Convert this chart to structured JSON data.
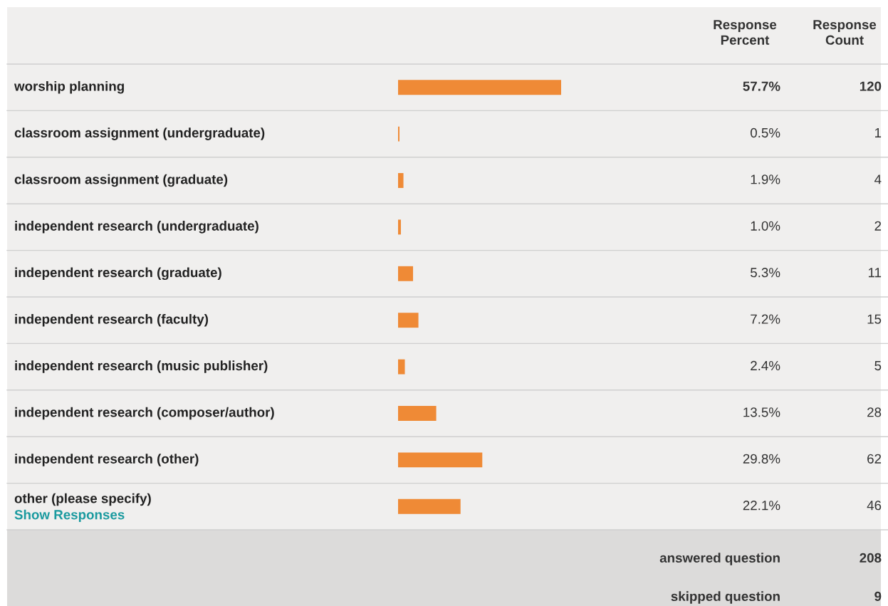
{
  "chart_data": {
    "type": "bar",
    "orientation": "horizontal",
    "categories": [
      "worship planning",
      "classroom assignment (undergraduate)",
      "classroom assignment (graduate)",
      "independent research (undergraduate)",
      "independent research (graduate)",
      "independent research (faculty)",
      "independent research (music publisher)",
      "independent research (composer/author)",
      "independent research (other)",
      "other (please specify)"
    ],
    "values": [
      57.7,
      0.5,
      1.9,
      1.0,
      5.3,
      7.2,
      2.4,
      13.5,
      29.8,
      22.1
    ],
    "value_labels": [
      "57.7%",
      "0.5%",
      "1.9%",
      "1.0%",
      "5.3%",
      "7.2%",
      "2.4%",
      "13.5%",
      "29.8%",
      "22.1%"
    ],
    "color": "#ef8a36",
    "tick_labels": false,
    "annotations": [
      "Response\nPercent",
      "Response\nCount",
      "120",
      "1",
      "4",
      "2",
      "11",
      "15",
      "5",
      "28",
      "62",
      "46",
      "Show Responses",
      "answered question",
      "208",
      "skipped question",
      "9"
    ]
  }
}
